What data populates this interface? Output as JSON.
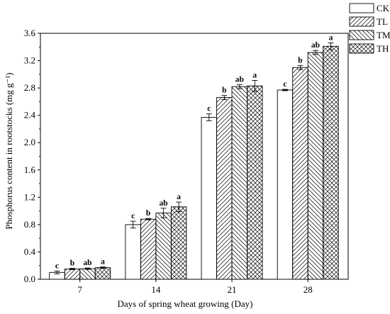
{
  "chart_data": {
    "type": "bar",
    "xlabel": "Days of spring wheat growing (Day)",
    "ylabel": "Phosphorus content in rootstocks (mg g⁻¹)",
    "ylim": [
      0,
      3.6
    ],
    "yticks": [
      "0.0",
      "0.4",
      "0.8",
      "1.2",
      "1.6",
      "2.0",
      "2.4",
      "2.8",
      "3.2",
      "3.6"
    ],
    "categories": [
      "7",
      "14",
      "21",
      "28"
    ],
    "legend_position": "top-right",
    "series": [
      {
        "name": "CK",
        "pattern": "none",
        "values": [
          0.1,
          0.8,
          2.37,
          2.77
        ],
        "errors": [
          0.02,
          0.05,
          0.05,
          0.01
        ],
        "letters": [
          "c",
          "c",
          "c",
          "c"
        ]
      },
      {
        "name": "TL",
        "pattern": "diag-forward",
        "values": [
          0.15,
          0.88,
          2.66,
          3.1
        ],
        "errors": [
          0.01,
          0.01,
          0.03,
          0.03
        ],
        "letters": [
          "b",
          "b",
          "b",
          "b"
        ]
      },
      {
        "name": "TM",
        "pattern": "diag-back",
        "values": [
          0.155,
          0.97,
          2.82,
          3.32
        ],
        "errors": [
          0.01,
          0.07,
          0.03,
          0.03
        ],
        "letters": [
          "ab",
          "ab",
          "ab",
          "ab"
        ]
      },
      {
        "name": "TH",
        "pattern": "crosshatch",
        "values": [
          0.17,
          1.06,
          2.83,
          3.41
        ],
        "errors": [
          0.01,
          0.07,
          0.08,
          0.05
        ],
        "letters": [
          "a",
          "a",
          "a",
          "a"
        ]
      }
    ]
  }
}
